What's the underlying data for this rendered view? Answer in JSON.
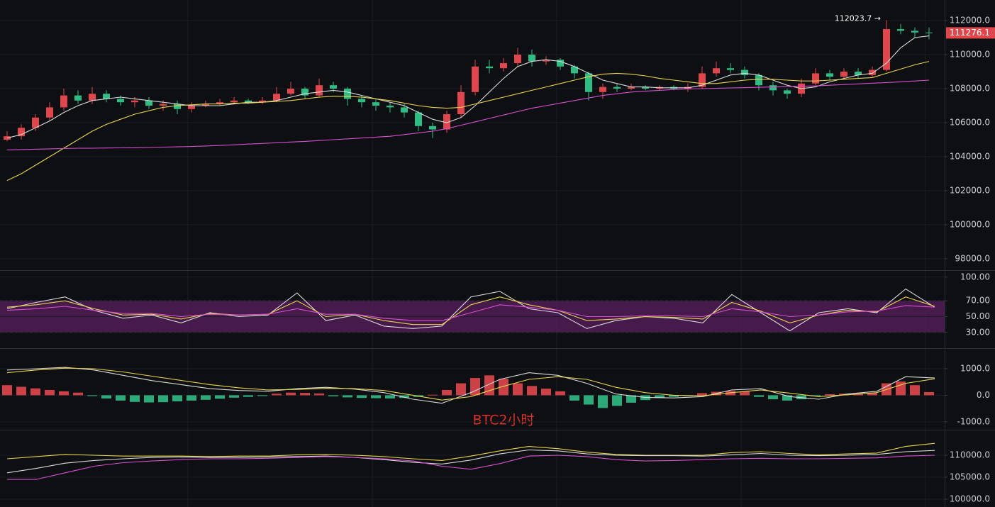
{
  "watermark": "BTC2小时",
  "chart_data": [
    {
      "type": "candlestick",
      "up_color": "#e0474c",
      "down_color": "#2ebd85",
      "open": [
        105000,
        105200,
        105700,
        106300,
        106900,
        107600,
        107300,
        107700,
        107400,
        107200,
        107300,
        107000,
        107100,
        106800,
        107000,
        107100,
        107200,
        107300,
        107200,
        107300,
        107700,
        108000,
        107600,
        108200,
        108000,
        107400,
        107200,
        107000,
        106900,
        106600,
        105800,
        105600,
        106500,
        107800,
        109300,
        109200,
        109500,
        110000,
        109600,
        109700,
        109300,
        108900,
        107800,
        108100,
        108000,
        108100,
        108000,
        108100,
        108000,
        108100,
        108900,
        109200,
        109100,
        108800,
        108200,
        107900,
        107700,
        108300,
        108900,
        108700,
        109000,
        108800,
        109100,
        111500,
        111400,
        111300
      ],
      "high": [
        105500,
        105900,
        106500,
        107200,
        108000,
        107900,
        108100,
        107900,
        107600,
        107500,
        107500,
        107300,
        107300,
        107200,
        107300,
        107400,
        107500,
        107400,
        107500,
        108100,
        108400,
        108100,
        108600,
        108400,
        108100,
        107600,
        107400,
        107200,
        107100,
        106700,
        106000,
        106700,
        108200,
        109700,
        109700,
        109800,
        110400,
        110300,
        109900,
        109800,
        109400,
        109000,
        108300,
        108300,
        108300,
        108200,
        108200,
        108200,
        108300,
        109300,
        109600,
        109500,
        109300,
        108900,
        108400,
        108000,
        108600,
        109200,
        109100,
        109200,
        109200,
        109300,
        112023.7,
        111800,
        111600,
        111600
      ],
      "low": [
        104900,
        105000,
        105500,
        106100,
        106700,
        107100,
        107100,
        107200,
        107000,
        106900,
        106800,
        106700,
        106500,
        106600,
        106900,
        107000,
        107100,
        107100,
        107100,
        107200,
        107600,
        107400,
        107500,
        107800,
        107000,
        106900,
        106700,
        106600,
        106300,
        105500,
        105100,
        105400,
        106300,
        107600,
        108900,
        109000,
        109300,
        109300,
        109400,
        109100,
        108600,
        107300,
        107400,
        107800,
        107900,
        107900,
        107900,
        107900,
        107800,
        108000,
        108700,
        108900,
        108600,
        107900,
        107600,
        107400,
        107500,
        108200,
        108500,
        108600,
        108600,
        108700,
        109000,
        111200,
        111000,
        110900
      ],
      "close": [
        105200,
        105700,
        106300,
        106900,
        107600,
        107300,
        107700,
        107400,
        107200,
        107300,
        107000,
        107100,
        106800,
        107000,
        107100,
        107200,
        107300,
        107200,
        107300,
        107700,
        108000,
        107600,
        108200,
        108000,
        107400,
        107200,
        107000,
        106900,
        106600,
        105800,
        105600,
        106500,
        107800,
        109300,
        109200,
        109500,
        110000,
        109600,
        109700,
        109300,
        108900,
        107800,
        108100,
        108000,
        108100,
        108000,
        108100,
        108000,
        108100,
        108900,
        109200,
        109100,
        108800,
        108200,
        107900,
        107700,
        108300,
        108900,
        108700,
        109000,
        108800,
        109100,
        111500,
        111400,
        111300,
        111276.1
      ],
      "series": [
        {
          "color": "#d9d9d9",
          "values": [
            105100,
            105300,
            105700,
            106100,
            106600,
            107000,
            107300,
            107400,
            107500,
            107400,
            107300,
            107200,
            107100,
            107000,
            107000,
            107000,
            107100,
            107200,
            107200,
            107300,
            107500,
            107700,
            107800,
            107900,
            107800,
            107600,
            107400,
            107200,
            107000,
            106600,
            106200,
            106000,
            106300,
            107000,
            107800,
            108600,
            109300,
            109600,
            109700,
            109600,
            109300,
            108900,
            108500,
            108300,
            108100,
            108100,
            108050,
            108050,
            108050,
            108200,
            108500,
            108800,
            108900,
            108800,
            108500,
            108200,
            108000,
            108100,
            108400,
            108600,
            108800,
            108900,
            109500,
            110400,
            111000,
            111100
          ]
        },
        {
          "color": "#e8d44d",
          "values": [
            102600,
            103000,
            103500,
            104000,
            104500,
            105000,
            105500,
            105900,
            106200,
            106500,
            106700,
            106900,
            107000,
            107050,
            107100,
            107100,
            107150,
            107150,
            107200,
            107250,
            107300,
            107400,
            107500,
            107550,
            107550,
            107500,
            107400,
            107300,
            107150,
            107000,
            106900,
            106850,
            106900,
            107100,
            107300,
            107500,
            107700,
            107900,
            108100,
            108300,
            108500,
            108700,
            108850,
            108900,
            108850,
            108750,
            108600,
            108500,
            108400,
            108300,
            108300,
            108400,
            108500,
            108550,
            108550,
            108500,
            108450,
            108450,
            108500,
            108550,
            108600,
            108650,
            108900,
            109150,
            109400,
            109600
          ]
        },
        {
          "color": "#d64fd0",
          "values": [
            104400,
            104420,
            104440,
            104460,
            104480,
            104500,
            104500,
            104510,
            104520,
            104530,
            104540,
            104560,
            104580,
            104600,
            104630,
            104660,
            104700,
            104740,
            104780,
            104820,
            104860,
            104900,
            104950,
            105000,
            105050,
            105100,
            105150,
            105200,
            105300,
            105400,
            105500,
            105650,
            105850,
            106050,
            106250,
            106450,
            106650,
            106850,
            107000,
            107150,
            107300,
            107450,
            107600,
            107700,
            107800,
            107850,
            107900,
            107950,
            107980,
            108000,
            108020,
            108040,
            108060,
            108080,
            108100,
            108120,
            108140,
            108160,
            108200,
            108240,
            108280,
            108320,
            108360,
            108400,
            108450,
            108500
          ]
        }
      ],
      "ylim": [
        97330,
        113210
      ],
      "yticks": [
        {
          "value": 98000,
          "label": "98000.0"
        },
        {
          "value": 100000,
          "label": "100000.0"
        },
        {
          "value": 102000,
          "label": "102000.0"
        },
        {
          "value": 104000,
          "label": "104000.0"
        },
        {
          "value": 106000,
          "label": "106000.0"
        },
        {
          "value": 108000,
          "label": "108000.0"
        },
        {
          "value": 110000,
          "label": "110000.0"
        },
        {
          "value": 112000,
          "label": "112000.0"
        }
      ],
      "annotation": "112023.7 →",
      "last_price": 111276.1,
      "last_price_color": "#e0474c",
      "grid": true
    },
    {
      "type": "line",
      "band": [
        30,
        70
      ],
      "band_color": "#5a1f5e",
      "series": [
        {
          "color": "#d9d9d9",
          "values": [
            60,
            68,
            75,
            58,
            48,
            52,
            42,
            55,
            50,
            52,
            80,
            45,
            52,
            38,
            35,
            38,
            75,
            82,
            60,
            55,
            35,
            45,
            50,
            48,
            42,
            78,
            55,
            32,
            55,
            60,
            55,
            85,
            62
          ]
        },
        {
          "color": "#e8d44d",
          "values": [
            62,
            65,
            70,
            60,
            52,
            53,
            47,
            54,
            52,
            53,
            70,
            50,
            53,
            45,
            40,
            40,
            65,
            75,
            65,
            58,
            45,
            47,
            50,
            49,
            47,
            68,
            57,
            42,
            52,
            58,
            56,
            75,
            63
          ]
        },
        {
          "color": "#d64fd0",
          "values": [
            58,
            60,
            63,
            58,
            54,
            54,
            50,
            53,
            52,
            53,
            60,
            53,
            53,
            48,
            45,
            45,
            55,
            65,
            62,
            58,
            50,
            50,
            51,
            51,
            50,
            60,
            56,
            50,
            52,
            56,
            57,
            64,
            62
          ]
        }
      ],
      "ylim": [
        11,
        107
      ],
      "yticks": [
        {
          "value": 30,
          "label": "30.00"
        },
        {
          "value": 50,
          "label": "50.00"
        },
        {
          "value": 70,
          "label": "70.00"
        },
        {
          "value": 100,
          "label": "100.00"
        }
      ],
      "grid": true
    },
    {
      "type": "macd",
      "up_color": "#e0474c",
      "down_color": "#2ebd85",
      "histogram": [
        380,
        320,
        260,
        200,
        150,
        100,
        -30,
        -120,
        -200,
        -250,
        -270,
        -260,
        -230,
        -200,
        -170,
        -130,
        -90,
        -60,
        -30,
        60,
        100,
        90,
        70,
        -40,
        -80,
        -100,
        -110,
        -120,
        -100,
        -60,
        20,
        200,
        450,
        650,
        750,
        620,
        450,
        350,
        250,
        150,
        -200,
        -350,
        -480,
        -400,
        -280,
        -180,
        -100,
        -60,
        -30,
        80,
        130,
        160,
        140,
        -60,
        -150,
        -200,
        -150,
        -40,
        40,
        60,
        50,
        80,
        450,
        520,
        380,
        120
      ],
      "series": [
        {
          "color": "#d9d9d9",
          "values": [
            950,
            1000,
            1050,
            950,
            750,
            550,
            400,
            250,
            180,
            150,
            250,
            300,
            230,
            100,
            -150,
            -300,
            100,
            600,
            850,
            750,
            450,
            50,
            -80,
            -100,
            -50,
            200,
            250,
            -50,
            -150,
            50,
            150,
            700,
            650
          ]
        },
        {
          "color": "#e8d44d",
          "values": [
            850,
            950,
            1020,
            1000,
            880,
            720,
            560,
            400,
            280,
            200,
            220,
            260,
            250,
            180,
            0,
            -180,
            -50,
            300,
            600,
            700,
            600,
            300,
            100,
            0,
            -20,
            100,
            200,
            80,
            -50,
            20,
            100,
            450,
            620
          ]
        }
      ],
      "ylim": [
        -1270,
        1720
      ],
      "yticks": [
        {
          "value": -1000,
          "label": "-1000.0"
        },
        {
          "value": 0,
          "label": "0.0"
        },
        {
          "value": 1000,
          "label": "1000.0"
        }
      ],
      "grid": true
    },
    {
      "type": "line",
      "series": [
        {
          "color": "#e8d44d",
          "values": [
            109200,
            109700,
            110200,
            110000,
            109800,
            109800,
            109800,
            109700,
            109800,
            109800,
            110100,
            110200,
            110000,
            109700,
            109200,
            108800,
            109800,
            111000,
            112000,
            111500,
            110700,
            110200,
            110000,
            110000,
            110000,
            110600,
            110800,
            110400,
            110100,
            110300,
            110500,
            112000,
            112700
          ]
        },
        {
          "color": "#d9d9d9",
          "values": [
            106000,
            107000,
            108200,
            108800,
            109200,
            109500,
            109600,
            109500,
            109500,
            109600,
            109700,
            109800,
            109500,
            109000,
            108400,
            108000,
            108900,
            110300,
            111200,
            111000,
            110300,
            110000,
            109900,
            109900,
            109800,
            110100,
            110400,
            110000,
            109900,
            110000,
            110200,
            110800,
            111100
          ]
        },
        {
          "color": "#d64fd0",
          "values": [
            104500,
            104500,
            106000,
            107500,
            108300,
            108700,
            109000,
            109200,
            109200,
            109300,
            109500,
            109700,
            109500,
            109200,
            108700,
            107500,
            106800,
            108100,
            109800,
            110000,
            109700,
            109000,
            108700,
            108800,
            109000,
            109200,
            109300,
            109200,
            109200,
            109300,
            109400,
            109800,
            110000
          ]
        }
      ],
      "ylim": [
        98230,
        115480
      ],
      "yticks": [
        {
          "value": 100000,
          "label": "100000.0"
        },
        {
          "value": 105000,
          "label": "105000.0"
        },
        {
          "value": 110000,
          "label": "110000.0"
        }
      ],
      "grid": true
    }
  ]
}
